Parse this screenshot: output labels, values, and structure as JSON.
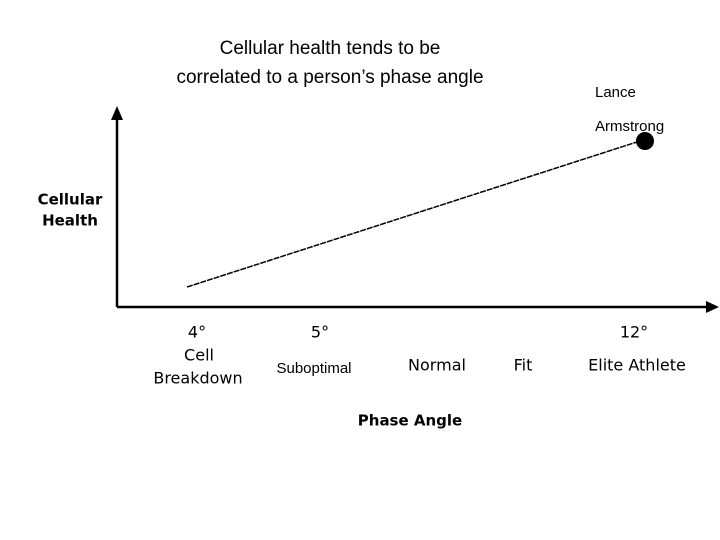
{
  "title": {
    "lines": [
      "Cellular health tends to be",
      "correlated to a person’s phase angle"
    ]
  },
  "y_axis": {
    "label_lines": [
      "Cellular",
      "Health"
    ]
  },
  "x_axis": {
    "label": "Phase Angle",
    "ticks": [
      {
        "degree": "4°",
        "labels": [
          "Cell",
          "Breakdown"
        ]
      },
      {
        "degree": "5°",
        "labels": [
          "Suboptimal"
        ]
      },
      {
        "labels": [
          "Normal"
        ]
      },
      {
        "labels": [
          "Fit"
        ]
      },
      {
        "degree": "12°",
        "labels": [
          "Elite Athlete"
        ]
      }
    ]
  },
  "annotation": {
    "lines": [
      "Lance",
      "Armstrong"
    ]
  }
}
